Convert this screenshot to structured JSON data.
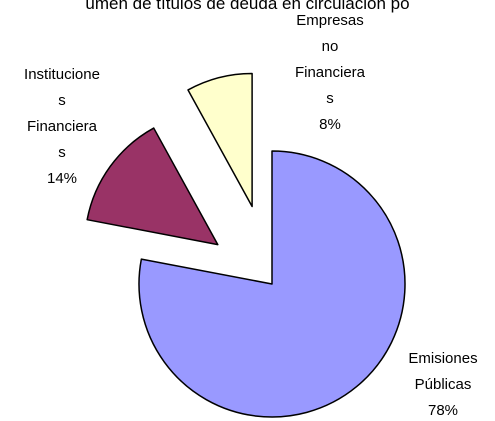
{
  "chart_data": {
    "type": "pie",
    "title": "umen de títulos de deuda en circulación po",
    "categories": [
      "Emisiones Públicas",
      "Instituciones Financieras",
      "Empresas no Financieras"
    ],
    "values": [
      78,
      14,
      8
    ],
    "value_labels": [
      "78%",
      "14%",
      "8%"
    ],
    "colors": [
      "#9999ff",
      "#993366",
      "#ffffcc"
    ]
  }
}
